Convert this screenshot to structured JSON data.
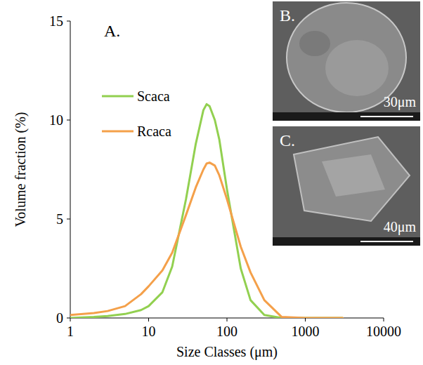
{
  "chart_data": {
    "type": "line",
    "panel_label": "A.",
    "x_label": "Size Classes (μm)",
    "y_label": "Volume fraction (%)",
    "log": "x",
    "legend": "upper left",
    "grid": false,
    "xlim": [
      1,
      10000
    ],
    "ylim": [
      0,
      15
    ],
    "xticks": [
      1,
      10,
      100,
      1000,
      10000
    ],
    "yticks": [
      0,
      5,
      10,
      15
    ],
    "x": [
      1,
      2,
      3,
      5,
      8,
      10,
      15,
      20,
      30,
      40,
      50,
      55,
      60,
      70,
      80,
      100,
      150,
      200,
      300,
      500,
      1000,
      3000
    ],
    "series": [
      {
        "name": "Scaca",
        "color": "#92d050",
        "values": [
          0,
          0.05,
          0.1,
          0.2,
          0.4,
          0.6,
          1.3,
          2.6,
          6,
          8.8,
          10.5,
          10.8,
          10.7,
          10,
          9,
          6.5,
          2.5,
          0.9,
          0.15,
          0,
          0,
          0
        ]
      },
      {
        "name": "Rcaca",
        "color": "#f4a04a",
        "values": [
          0.15,
          0.25,
          0.35,
          0.6,
          1.2,
          1.6,
          2.4,
          3.3,
          5.2,
          6.6,
          7.5,
          7.8,
          7.85,
          7.7,
          7.2,
          6,
          3.6,
          2.3,
          0.9,
          0.05,
          0,
          0
        ]
      }
    ],
    "insets": [
      {
        "label": "B.",
        "scale": "30μm"
      },
      {
        "label": "C.",
        "scale": "40μm"
      }
    ]
  }
}
